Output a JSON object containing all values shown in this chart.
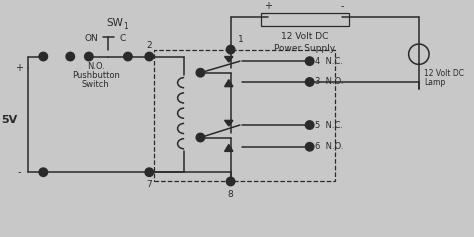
{
  "bg_color": "#c8c8c8",
  "line_color": "#2a2a2a",
  "text_color": "#2a2a2a",
  "sw_label": "SW",
  "sw_sub": "1",
  "on_label": "ON",
  "c_label": "C",
  "no_label": "N.O.",
  "pushbutton_label": "Pushbutton",
  "switch_label": "Switch",
  "volt5_label": "5V",
  "plus_label": "+",
  "minus_label": "-",
  "ps_label1": "12 Volt DC",
  "ps_label2": "Power Supply",
  "lamp_label1": "12 Volt DC",
  "lamp_label2": "Lamp",
  "node1": "1",
  "node2": "2",
  "node7": "7",
  "node8": "8",
  "nc4_label": "4  N.C.",
  "no3_label": "3  N.O.",
  "nc5_label": "5  N.C.",
  "no6_label": "6  N.O."
}
